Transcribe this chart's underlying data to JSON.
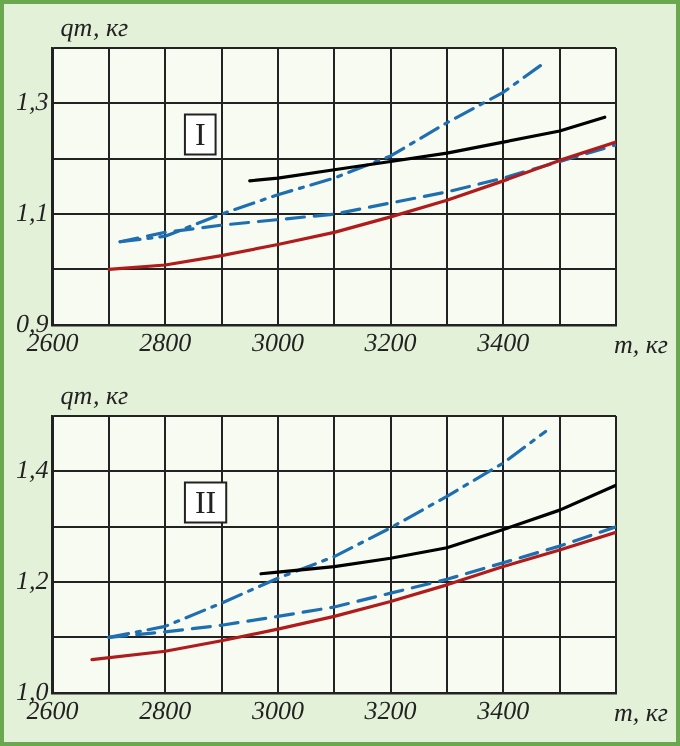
{
  "chart_data": [
    {
      "type": "line",
      "xlabel": "m, кг",
      "ylabel": "qт, кг",
      "annotations": [
        "I"
      ],
      "xlim": [
        2600,
        3600
      ],
      "ylim": [
        0.9,
        1.4
      ],
      "xticks": [
        2600,
        {
          "value": 2700,
          "label": null
        },
        2800,
        {
          "value": 2900,
          "label": null
        },
        3000,
        {
          "value": 3100,
          "label": null
        },
        3200,
        {
          "value": 3300,
          "label": null
        },
        3400,
        {
          "value": 3500,
          "label": null
        },
        {
          "value": 3600,
          "label": null
        }
      ],
      "yticks": [
        {
          "value": 0.9,
          "label": "0,9"
        },
        {
          "value": 1.0,
          "label": null
        },
        {
          "value": 1.1,
          "label": "1,1"
        },
        {
          "value": 1.2,
          "label": null
        },
        {
          "value": 1.3,
          "label": "1,3"
        },
        {
          "value": 1.4,
          "label": null
        }
      ],
      "grid": true,
      "legend": false,
      "marker": "none",
      "series": [
        {
          "color": "#b01c1c",
          "line_style": "solid",
          "x": [
            2700,
            2800,
            2900,
            3000,
            3100,
            3200,
            3300,
            3400,
            3500,
            3600
          ],
          "values": [
            1.0,
            1.008,
            1.025,
            1.045,
            1.067,
            1.095,
            1.125,
            1.16,
            1.197,
            1.23
          ]
        },
        {
          "color": "#000000",
          "line_style": "solid",
          "x": [
            2950,
            3000,
            3100,
            3200,
            3300,
            3400,
            3500,
            3580
          ],
          "values": [
            1.16,
            1.165,
            1.18,
            1.195,
            1.21,
            1.23,
            1.25,
            1.275
          ]
        },
        {
          "color": "#1f6fb0",
          "line_style": "dashed",
          "x": [
            2720,
            2800,
            2900,
            3000,
            3100,
            3200,
            3300,
            3400,
            3500,
            3600
          ],
          "values": [
            1.05,
            1.067,
            1.08,
            1.09,
            1.1,
            1.12,
            1.14,
            1.165,
            1.195,
            1.225
          ]
        },
        {
          "color": "#1f6fb0",
          "line_style": "dashdot",
          "x": [
            2720,
            2800,
            2900,
            3000,
            3100,
            3200,
            3300,
            3400,
            3475
          ],
          "values": [
            1.05,
            1.06,
            1.1,
            1.135,
            1.165,
            1.205,
            1.265,
            1.32,
            1.375
          ]
        }
      ]
    },
    {
      "type": "line",
      "xlabel": "m, кг",
      "ylabel": "qт, кг",
      "annotations": [
        "II"
      ],
      "xlim": [
        2600,
        3600
      ],
      "ylim": [
        1.0,
        1.5
      ],
      "xticks": [
        2600,
        {
          "value": 2700,
          "label": null
        },
        2800,
        {
          "value": 2900,
          "label": null
        },
        3000,
        {
          "value": 3100,
          "label": null
        },
        3200,
        {
          "value": 3300,
          "label": null
        },
        3400,
        {
          "value": 3500,
          "label": null
        },
        {
          "value": 3600,
          "label": null
        }
      ],
      "yticks": [
        {
          "value": 1.0,
          "label": "1,0"
        },
        {
          "value": 1.1,
          "label": null
        },
        {
          "value": 1.2,
          "label": "1,2"
        },
        {
          "value": 1.3,
          "label": null
        },
        {
          "value": 1.4,
          "label": "1,4"
        },
        {
          "value": 1.5,
          "label": null
        }
      ],
      "grid": true,
      "legend": false,
      "marker": "none",
      "series": [
        {
          "color": "#b01c1c",
          "line_style": "solid",
          "x": [
            2670,
            2800,
            2900,
            3000,
            3100,
            3200,
            3300,
            3400,
            3500,
            3600
          ],
          "values": [
            1.06,
            1.075,
            1.094,
            1.115,
            1.138,
            1.165,
            1.195,
            1.228,
            1.258,
            1.29
          ]
        },
        {
          "color": "#000000",
          "line_style": "solid",
          "x": [
            2970,
            3000,
            3100,
            3200,
            3300,
            3400,
            3500,
            3600
          ],
          "values": [
            1.215,
            1.218,
            1.228,
            1.243,
            1.262,
            1.295,
            1.33,
            1.375
          ]
        },
        {
          "color": "#1f6fb0",
          "line_style": "dashed",
          "x": [
            2700,
            2800,
            2900,
            3000,
            3100,
            3200,
            3300,
            3400,
            3500,
            3600
          ],
          "values": [
            1.1,
            1.11,
            1.122,
            1.138,
            1.155,
            1.18,
            1.205,
            1.235,
            1.265,
            1.3
          ]
        },
        {
          "color": "#1f6fb0",
          "line_style": "dashdot",
          "x": [
            2700,
            2800,
            2900,
            3000,
            3100,
            3200,
            3300,
            3400,
            3475
          ],
          "values": [
            1.1,
            1.12,
            1.162,
            1.207,
            1.246,
            1.298,
            1.355,
            1.415,
            1.472
          ]
        }
      ]
    }
  ]
}
